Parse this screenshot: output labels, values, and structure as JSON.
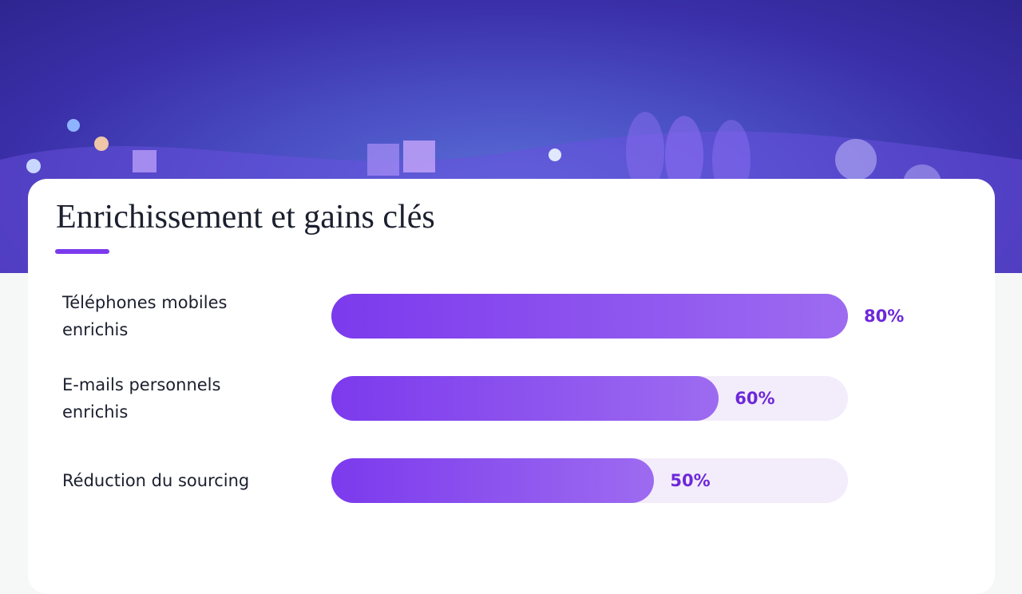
{
  "chart_data": {
    "type": "bar",
    "orientation": "horizontal",
    "title": "Enrichissement et gains clés",
    "categories": [
      "Téléphones mobiles enrichis",
      "E-mails personnels enrichis",
      "Réduction du sourcing"
    ],
    "values": [
      80,
      60,
      50
    ],
    "value_labels": [
      "80%",
      "60%",
      "50%"
    ],
    "color": "#7c3aed"
  }
}
